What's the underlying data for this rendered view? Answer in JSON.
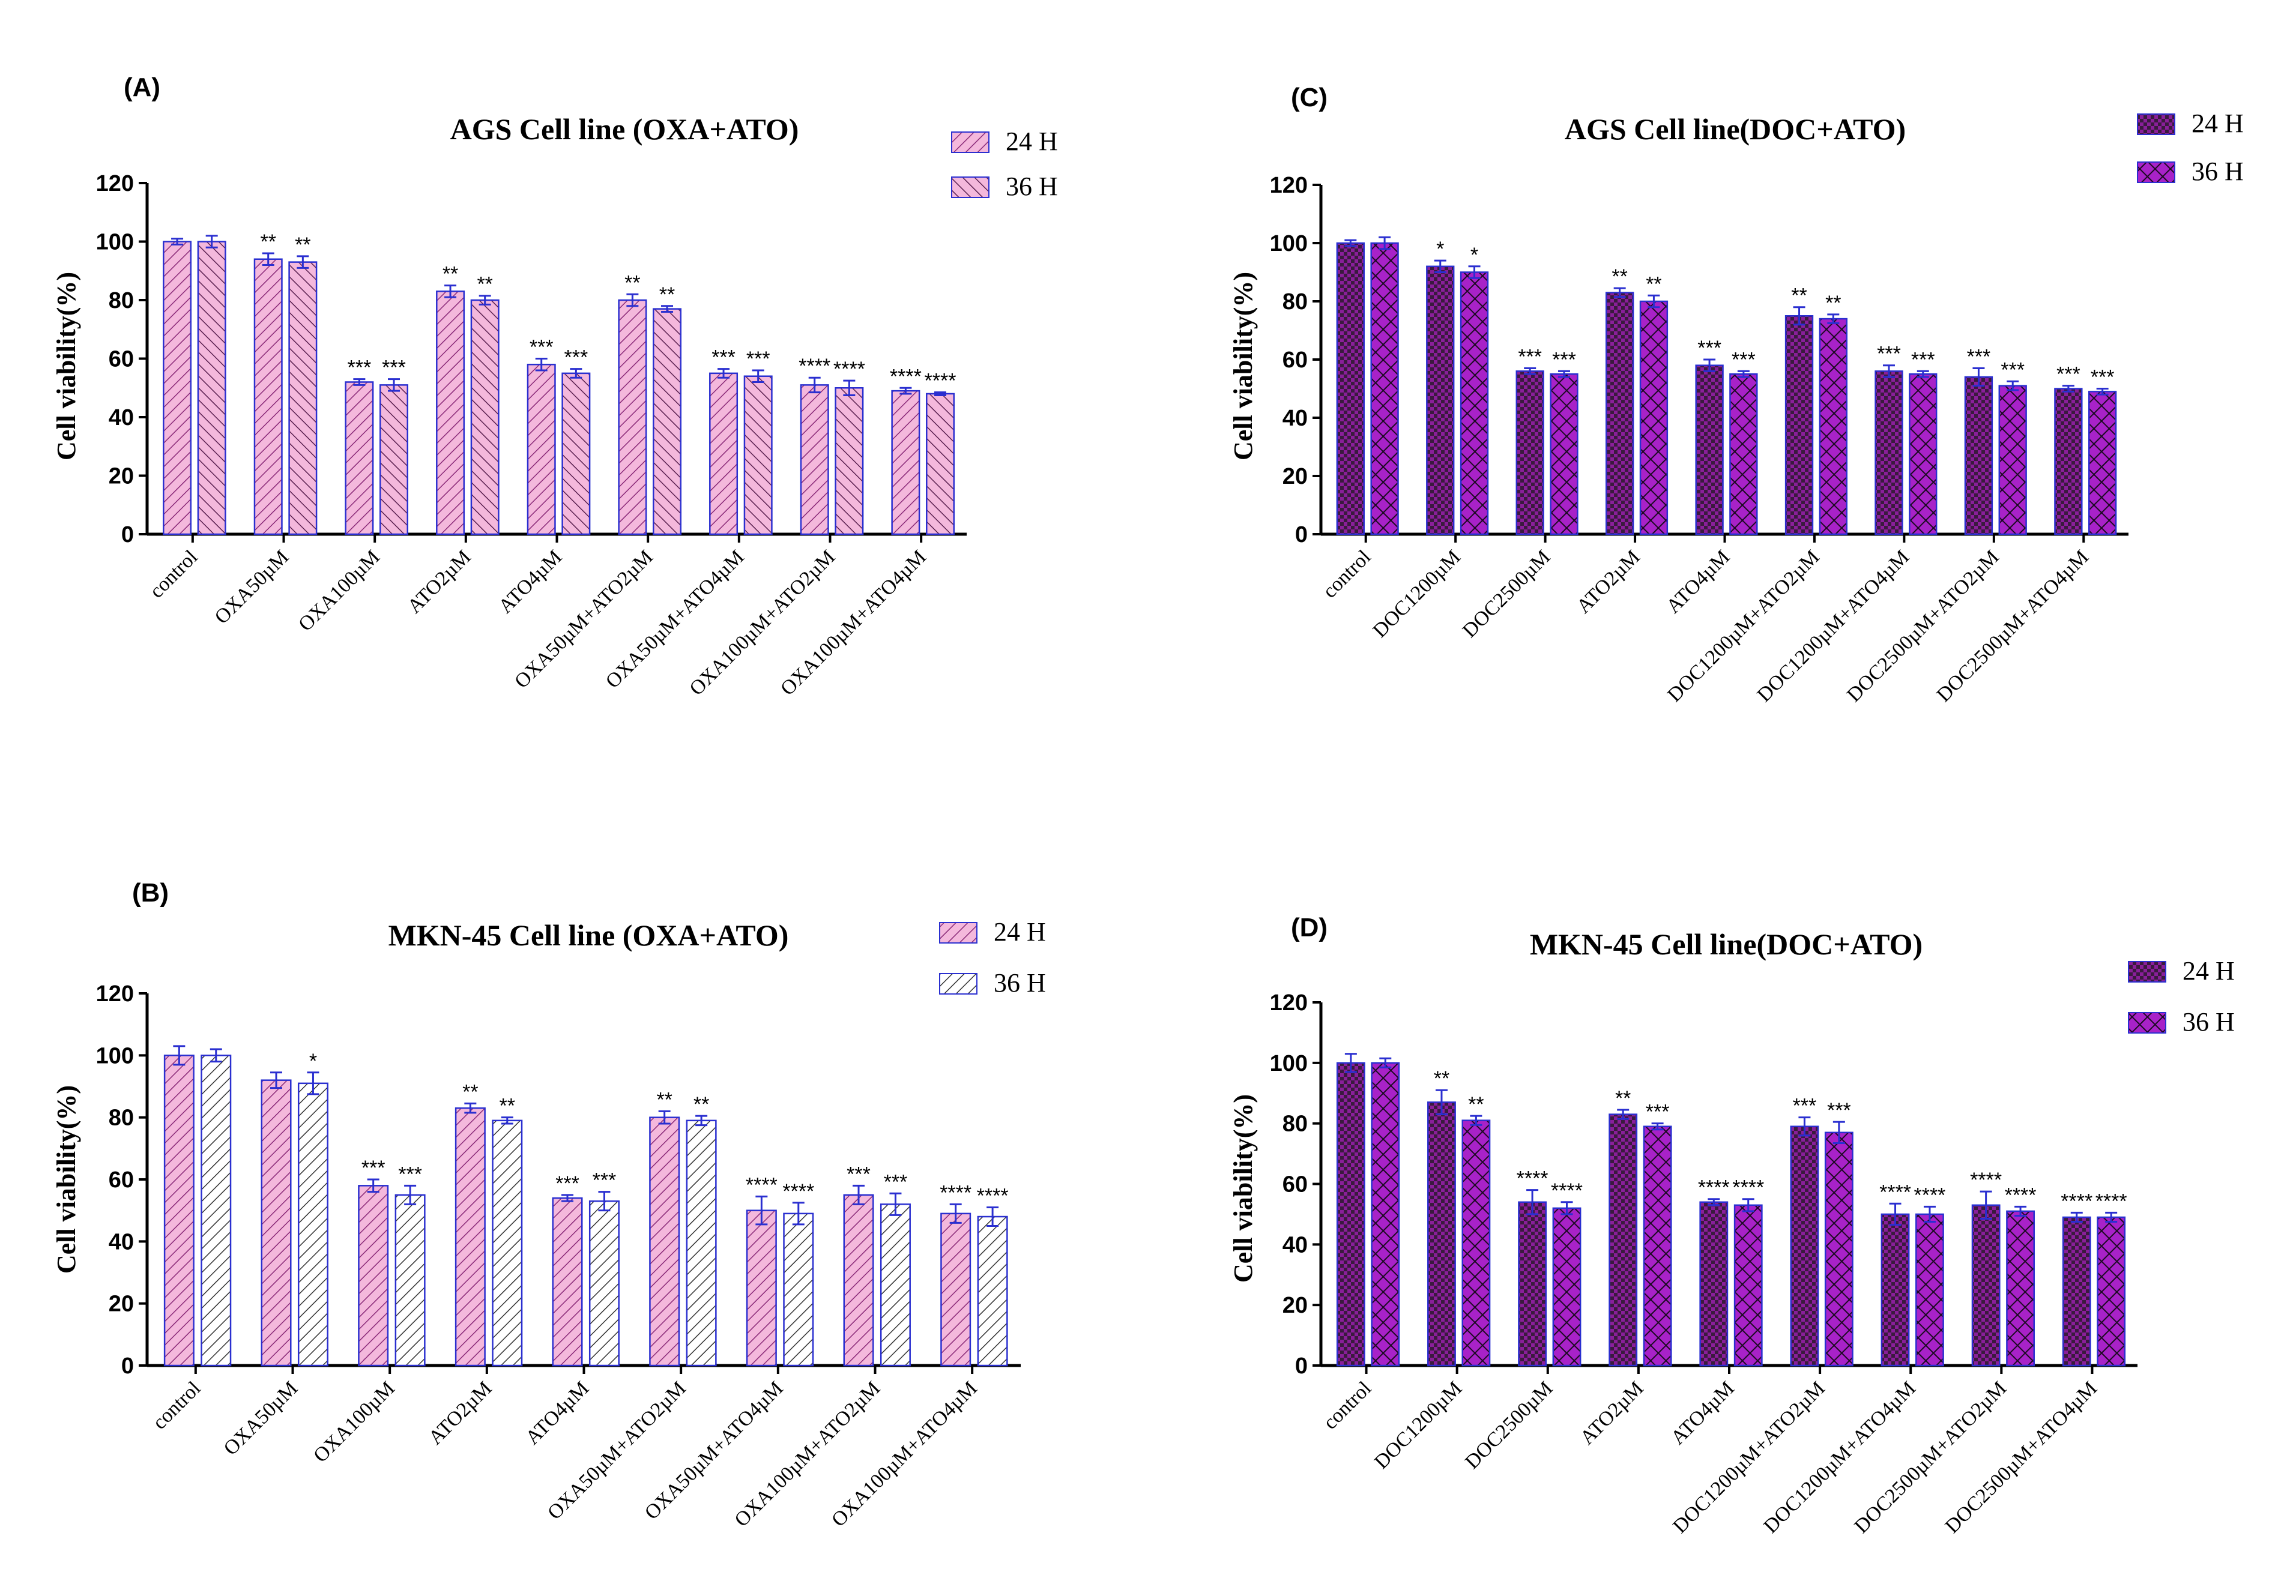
{
  "colors": {
    "pink_fill": "#f4b8dc",
    "pink_stroke": "#9b2d8a",
    "purple_fill": "#9c1fb5",
    "purple_dark": "#3a1a3e",
    "bar_outline": "#2a2fd0",
    "error_bar": "#2a2fd0"
  },
  "chart_data": [
    {
      "panel": "(A)",
      "type": "bar",
      "title": "AGS Cell line (OXA+ATO)",
      "ylabel": "Cell viability(%)",
      "ylim": [
        0,
        120
      ],
      "yticks": [
        0,
        20,
        40,
        60,
        80,
        100,
        120
      ],
      "legend_position": "top-right",
      "categories": [
        "control",
        "OXA50µM",
        "OXA100µM",
        "ATO2µM",
        "ATO4µM",
        "OXA50µM+ATO2µM",
        "OXA50µM+ATO4µM",
        "OXA100µM+ATO2µM",
        "OXA100µM+ATO4µM"
      ],
      "series": [
        {
          "name": "24 H",
          "pattern": "pink-hatch-back",
          "values": [
            100,
            94,
            52,
            83,
            58,
            80,
            55,
            51,
            49
          ],
          "errors": [
            1,
            2,
            1,
            2,
            2,
            2,
            1.5,
            2.5,
            1
          ],
          "sig": [
            "",
            "**",
            "***",
            "**",
            "***",
            "**",
            "***",
            "****",
            "****"
          ]
        },
        {
          "name": "36 H",
          "pattern": "pink-hatch-forward",
          "values": [
            100,
            93,
            51,
            80,
            55,
            77,
            54,
            50,
            48
          ],
          "errors": [
            2,
            2,
            2,
            1.5,
            1.5,
            1,
            2,
            2.5,
            0.5
          ],
          "sig": [
            "",
            "**",
            "***",
            "**",
            "***",
            "**",
            "***",
            "****",
            "****"
          ]
        }
      ]
    },
    {
      "panel": "(B)",
      "type": "bar",
      "title": "MKN-45 Cell line (OXA+ATO)",
      "ylabel": "Cell viability(%)",
      "ylim": [
        0,
        120
      ],
      "yticks": [
        0,
        20,
        40,
        60,
        80,
        100,
        120
      ],
      "legend_position": "top-right",
      "categories": [
        "control",
        "OXA50µM",
        "OXA100µM",
        "ATO2µM",
        "ATO4µM",
        "OXA50µM+ATO2µM",
        "OXA50µM+ATO4µM",
        "OXA100µM+ATO2µM",
        "OXA100µM+ATO4µM"
      ],
      "series": [
        {
          "name": "24 H",
          "pattern": "pink-hatch-back",
          "values": [
            100,
            92,
            58,
            83,
            54,
            80,
            50,
            55,
            49
          ],
          "errors": [
            3,
            2.5,
            2,
            1.5,
            1,
            2,
            4.5,
            3,
            3
          ],
          "sig": [
            "",
            "",
            "***",
            "**",
            "***",
            "**",
            "****",
            "***",
            "****"
          ]
        },
        {
          "name": "36 H",
          "pattern": "white-hatch-back",
          "values": [
            100,
            91,
            55,
            79,
            53,
            79,
            49,
            52,
            48
          ],
          "errors": [
            2,
            3.5,
            3,
            1,
            3,
            1.5,
            3.5,
            3.5,
            3
          ],
          "sig": [
            "",
            "*",
            "***",
            "**",
            "***",
            "**",
            "****",
            "***",
            "****"
          ]
        }
      ]
    },
    {
      "panel": "(C)",
      "type": "bar",
      "title": "AGS Cell line(DOC+ATO)",
      "ylabel": "Cell viability(%)",
      "ylim": [
        0,
        120
      ],
      "yticks": [
        0,
        20,
        40,
        60,
        80,
        100,
        120
      ],
      "legend_position": "top-right",
      "categories": [
        "control",
        "DOC1200µM",
        "DOC2500µM",
        "ATO2µM",
        "ATO4µM",
        "DOC1200µM+ATO2µM",
        "DOC1200µM+ATO4µM",
        "DOC2500µM+ATO2µM",
        "DOC2500µM+ATO4µM"
      ],
      "series": [
        {
          "name": "24 H",
          "pattern": "dark-check",
          "values": [
            100,
            92,
            56,
            83,
            58,
            75,
            56,
            54,
            50
          ],
          "errors": [
            1,
            2,
            1,
            1.5,
            2,
            3,
            2,
            3,
            1
          ],
          "sig": [
            "",
            "*",
            "***",
            "**",
            "***",
            "**",
            "***",
            "***",
            "***"
          ]
        },
        {
          "name": "36 H",
          "pattern": "purple-lattice",
          "values": [
            100,
            90,
            55,
            80,
            55,
            74,
            55,
            51,
            49
          ],
          "errors": [
            2,
            2,
            1,
            2,
            1,
            1.5,
            1,
            1.5,
            1
          ],
          "sig": [
            "",
            "*",
            "***",
            "**",
            "***",
            "**",
            "***",
            "***",
            "***"
          ]
        }
      ]
    },
    {
      "panel": "(D)",
      "type": "bar",
      "title": "MKN-45 Cell line(DOC+ATO)",
      "ylabel": "Cell viability(%)",
      "ylim": [
        0,
        120
      ],
      "yticks": [
        0,
        20,
        40,
        60,
        80,
        100,
        120
      ],
      "legend_position": "top-right",
      "categories": [
        "control",
        "DOC1200µM",
        "DOC2500µM",
        "ATO2µM",
        "ATO4µM",
        "DOC1200µM+ATO2µM",
        "DOC1200µM+ATO4µM",
        "DOC2500µM+ATO2µM",
        "DOC2500µM+ATO4µM"
      ],
      "series": [
        {
          "name": "24 H",
          "pattern": "dark-check",
          "values": [
            100,
            87,
            54,
            83,
            54,
            79,
            50,
            53,
            49
          ],
          "errors": [
            3,
            4,
            4,
            1.5,
            1,
            3,
            3.5,
            4.5,
            1.5
          ],
          "sig": [
            "",
            "**",
            "****",
            "**",
            "****",
            "***",
            "****",
            "****",
            "****"
          ]
        },
        {
          "name": "36 H",
          "pattern": "purple-lattice",
          "values": [
            100,
            81,
            52,
            79,
            53,
            77,
            50,
            51,
            49
          ],
          "errors": [
            1.5,
            1.5,
            2,
            1,
            2,
            3.5,
            2.5,
            1.5,
            1.5
          ],
          "sig": [
            "",
            "**",
            "****",
            "***",
            "****",
            "***",
            "****",
            "****",
            "****"
          ]
        }
      ]
    }
  ]
}
